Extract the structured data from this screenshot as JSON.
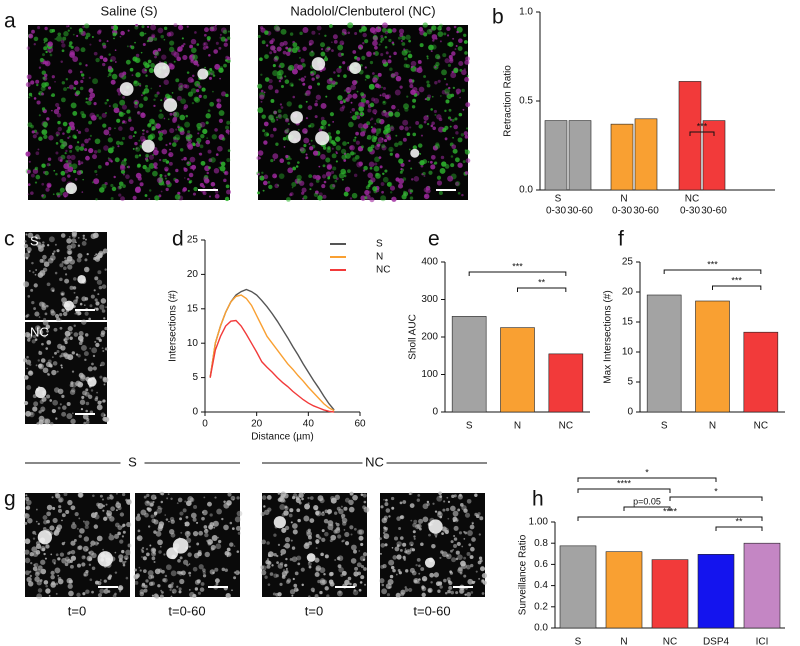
{
  "panel_letters": [
    "a",
    "b",
    "c",
    "d",
    "e",
    "f",
    "g",
    "h"
  ],
  "image_labels": {
    "a": [
      "Saline (S)",
      "Nadolol/Clenbuterol (NC)"
    ],
    "c": [
      "S",
      "NC"
    ],
    "g_groups": [
      "S",
      "NC"
    ],
    "g_times": [
      "t=0",
      "t=0-60",
      "t=0",
      "t=0-60"
    ]
  },
  "chart_data": [
    {
      "type": "bar",
      "y_label": "Retraction Ratio",
      "categories": [
        "0-30",
        "30-60",
        "0-30",
        "30-60",
        "0-30",
        "30-60"
      ],
      "group_labels": [
        "S",
        "N",
        "NC"
      ],
      "values": [
        0.39,
        0.39,
        0.37,
        0.4,
        0.61,
        0.39
      ],
      "colors": [
        "#a3a3a3",
        "#a3a3a3",
        "#f9a032",
        "#f9a032",
        "#f23a3a",
        "#f23a3a"
      ],
      "ylim": [
        0,
        1
      ],
      "yticks": [
        {
          "value": 0,
          "label": "0.0"
        },
        {
          "value": 0.5,
          "label": "0.5"
        },
        {
          "value": 1,
          "label": "1.0"
        }
      ],
      "annotations": [
        "***"
      ]
    },
    {
      "type": "line",
      "x_label": "Distance (µm)",
      "y_label": "Intersections (#)",
      "x": [
        2,
        4,
        6,
        8,
        10,
        12,
        14,
        16,
        18,
        20,
        22,
        24,
        26,
        28,
        30,
        32,
        34,
        36,
        38,
        40,
        42,
        44,
        46,
        48,
        50
      ],
      "series": [
        {
          "name": "S",
          "color": "#555555",
          "values": [
            5,
            10,
            12.5,
            14.5,
            16,
            17,
            17.5,
            17.8,
            17.5,
            17,
            16.2,
            15.3,
            14.3,
            13.2,
            12,
            10.8,
            9.5,
            8.3,
            7,
            5.8,
            4.6,
            3.5,
            2.3,
            1.2,
            0.3
          ]
        },
        {
          "name": "N",
          "color": "#f9a032",
          "values": [
            5,
            10,
            12.5,
            14.5,
            16,
            16.8,
            17,
            16.5,
            15.5,
            14,
            12.5,
            11,
            10,
            9,
            8,
            7,
            6.2,
            5.3,
            4.5,
            3.6,
            2.8,
            2,
            1.2,
            0.6,
            0.2
          ]
        },
        {
          "name": "NC",
          "color": "#f23a3a",
          "values": [
            5,
            9,
            11,
            12.5,
            13.2,
            13.3,
            12.5,
            11.3,
            10,
            8.7,
            7.3,
            6.5,
            5.8,
            5,
            4.3,
            3.7,
            3,
            2.4,
            1.8,
            1.3,
            0.9,
            0.6,
            0.3,
            0.1,
            0
          ]
        }
      ],
      "xlim": [
        0,
        60
      ],
      "xticks": [
        0,
        20,
        40,
        60
      ],
      "ylim": [
        0,
        25
      ],
      "yticks": [
        0,
        5,
        10,
        15,
        20,
        25
      ]
    },
    {
      "type": "bar",
      "y_label": "Sholl  AUC",
      "categories": [
        "S",
        "N",
        "NC"
      ],
      "values": [
        255,
        225,
        155
      ],
      "colors": [
        "#a3a3a3",
        "#f9a032",
        "#f23a3a"
      ],
      "ylim": [
        0,
        400
      ],
      "yticks": [
        0,
        100,
        200,
        300,
        400
      ],
      "annotations": [
        "***",
        "**"
      ]
    },
    {
      "type": "bar",
      "y_label": "Max Intersections (#)",
      "categories": [
        "S",
        "N",
        "NC"
      ],
      "values": [
        19.5,
        18.5,
        13.3
      ],
      "colors": [
        "#a3a3a3",
        "#f9a032",
        "#f23a3a"
      ],
      "ylim": [
        0,
        25
      ],
      "yticks": [
        0,
        5,
        10,
        15,
        20,
        25
      ],
      "annotations": [
        "***",
        "***"
      ]
    },
    {
      "type": "bar",
      "y_label": "Surveillance Ratio",
      "categories": [
        "S",
        "N",
        "NC",
        "DSP4",
        "ICI"
      ],
      "values": [
        0.775,
        0.72,
        0.645,
        0.695,
        0.8
      ],
      "colors": [
        "#a3a3a3",
        "#f9a032",
        "#f23a3a",
        "#1414ee",
        "#c486c4"
      ],
      "ylim": [
        0,
        1
      ],
      "yticks": [
        {
          "value": 0,
          "label": "0.0"
        },
        {
          "value": 0.2,
          "label": "0.2"
        },
        {
          "value": 0.4,
          "label": "0.4"
        },
        {
          "value": 0.6,
          "label": "0.6"
        },
        {
          "value": 0.8,
          "label": "0.8"
        },
        {
          "value": 1,
          "label": "1.00"
        }
      ],
      "annotations": [
        "*",
        "****",
        "p=0.05",
        "*",
        "****",
        "**"
      ]
    }
  ]
}
